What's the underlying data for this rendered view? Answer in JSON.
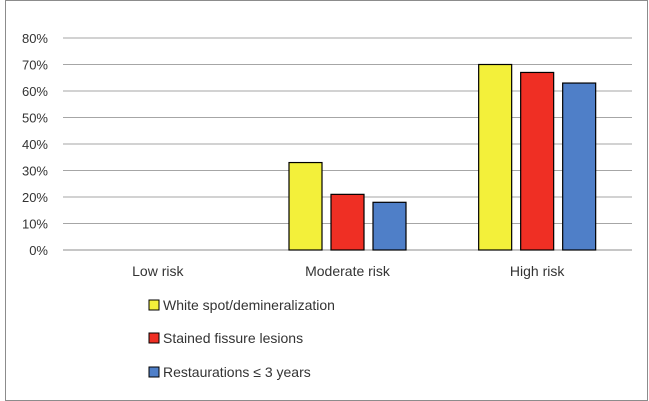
{
  "chart_data": {
    "type": "bar",
    "categories": [
      "Low risk",
      "Moderate risk",
      "High risk"
    ],
    "series": [
      {
        "name": "White spot/demineralization",
        "color": "#f3f03a",
        "values": [
          0,
          33,
          70
        ]
      },
      {
        "name": "Stained fissure lesions",
        "color": "#ef2f24",
        "values": [
          0,
          21,
          67
        ]
      },
      {
        "name": "Restaurations ≤ 3 years",
        "color": "#4f7fc8",
        "values": [
          0,
          18,
          63
        ]
      }
    ],
    "ylim": [
      0,
      80
    ],
    "yticks": [
      "0%",
      "10%",
      "20%",
      "30%",
      "40%",
      "50%",
      "60%",
      "70%",
      "80%"
    ],
    "grid": true,
    "legend_position": "bottom",
    "title": "",
    "xlabel": "",
    "ylabel": ""
  }
}
